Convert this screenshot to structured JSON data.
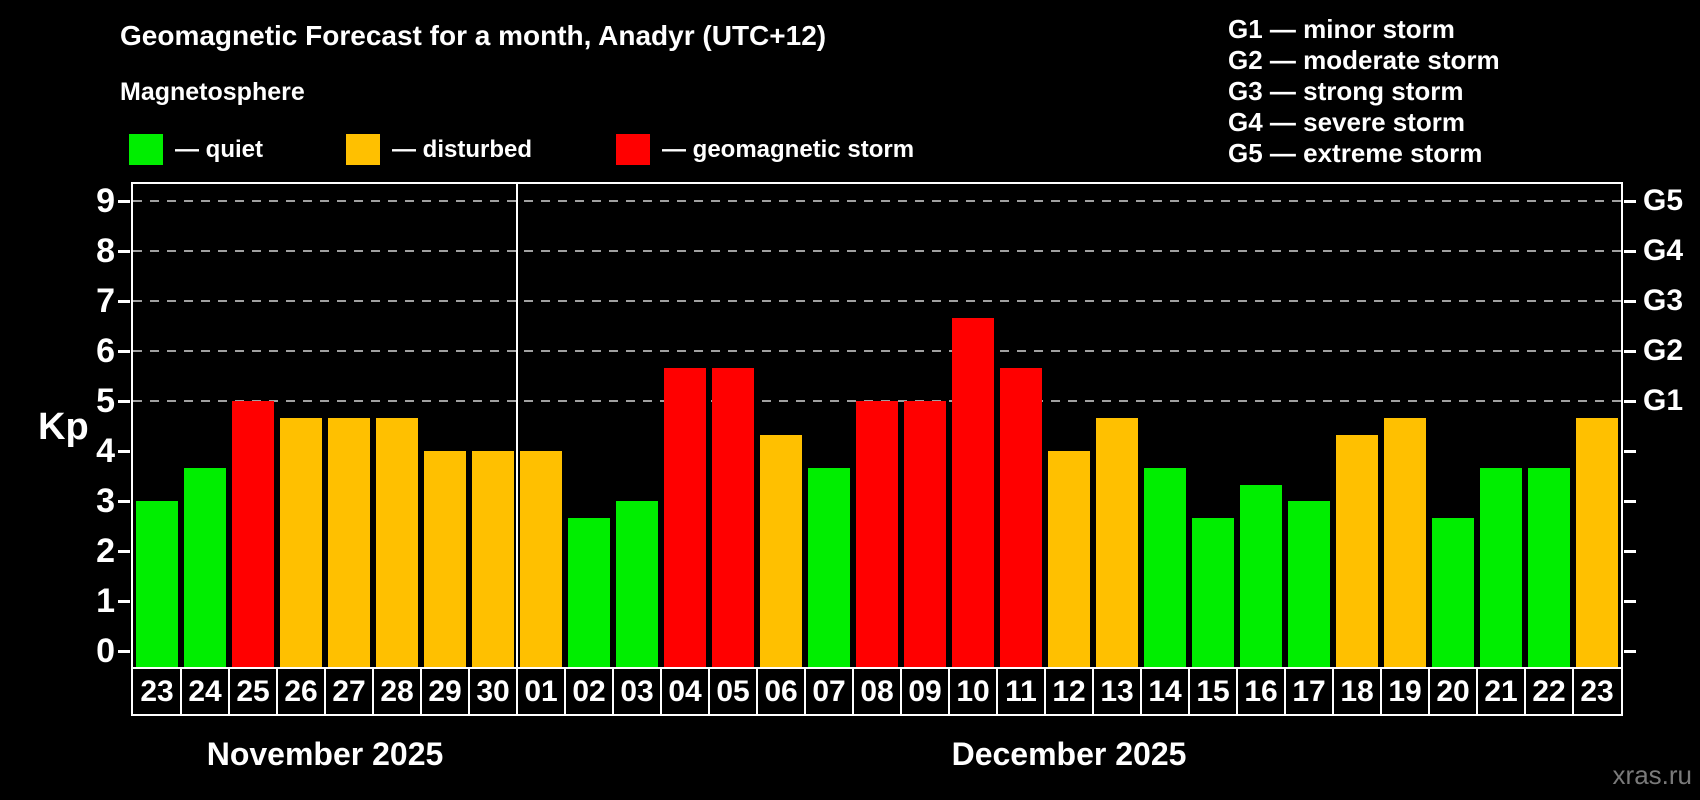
{
  "header": {
    "title": "Geomagnetic Forecast for a month, Anadyr (UTC+12)",
    "subtitle": "Magnetosphere"
  },
  "colors": {
    "quiet": "#00ee00",
    "disturbed": "#ffc000",
    "storm": "#ff0000",
    "grid": "#a0a0a0",
    "axis": "#ffffff",
    "watermark": "#7a7a7a"
  },
  "legend": {
    "items": [
      {
        "state": "quiet",
        "label": "— quiet"
      },
      {
        "state": "disturbed",
        "label": "— disturbed"
      },
      {
        "state": "storm",
        "label": "— geomagnetic storm"
      }
    ]
  },
  "g_legend": {
    "items": [
      "G1 — minor storm",
      "G2 — moderate storm",
      "G3 — strong storm",
      "G4 — severe storm",
      "G5 — extreme storm"
    ]
  },
  "axes": {
    "y_label": "Kp",
    "y_ticks": [
      0,
      1,
      2,
      3,
      4,
      5,
      6,
      7,
      8,
      9
    ],
    "right_labels": [
      {
        "kp": 5,
        "label": "G1"
      },
      {
        "kp": 6,
        "label": "G2"
      },
      {
        "kp": 7,
        "label": "G3"
      },
      {
        "kp": 8,
        "label": "G4"
      },
      {
        "kp": 9,
        "label": "G5"
      }
    ]
  },
  "chart_data": {
    "type": "bar",
    "title": "Geomagnetic Forecast for a month, Anadyr (UTC+12)",
    "xlabel": "",
    "ylabel": "Kp",
    "ylim": [
      0,
      9
    ],
    "grid": "horizontal dashed lines at Kp 5,6,7,8,9 (G1–G5 levels)",
    "legend_position": "top",
    "months": [
      {
        "label": "November 2025",
        "days": [
          {
            "day": "23",
            "kp": 3.0,
            "state": "quiet"
          },
          {
            "day": "24",
            "kp": 3.67,
            "state": "quiet"
          },
          {
            "day": "25",
            "kp": 5.0,
            "state": "storm"
          },
          {
            "day": "26",
            "kp": 4.67,
            "state": "disturbed"
          },
          {
            "day": "27",
            "kp": 4.67,
            "state": "disturbed"
          },
          {
            "day": "28",
            "kp": 4.67,
            "state": "disturbed"
          },
          {
            "day": "29",
            "kp": 4.0,
            "state": "disturbed"
          },
          {
            "day": "30",
            "kp": 4.0,
            "state": "disturbed"
          }
        ]
      },
      {
        "label": "December 2025",
        "days": [
          {
            "day": "01",
            "kp": 4.0,
            "state": "disturbed"
          },
          {
            "day": "02",
            "kp": 2.67,
            "state": "quiet"
          },
          {
            "day": "03",
            "kp": 3.0,
            "state": "quiet"
          },
          {
            "day": "04",
            "kp": 5.67,
            "state": "storm"
          },
          {
            "day": "05",
            "kp": 5.67,
            "state": "storm"
          },
          {
            "day": "06",
            "kp": 4.33,
            "state": "disturbed"
          },
          {
            "day": "07",
            "kp": 3.67,
            "state": "quiet"
          },
          {
            "day": "08",
            "kp": 5.0,
            "state": "storm"
          },
          {
            "day": "09",
            "kp": 5.0,
            "state": "storm"
          },
          {
            "day": "10",
            "kp": 6.67,
            "state": "storm"
          },
          {
            "day": "11",
            "kp": 5.67,
            "state": "storm"
          },
          {
            "day": "12",
            "kp": 4.0,
            "state": "disturbed"
          },
          {
            "day": "13",
            "kp": 4.67,
            "state": "disturbed"
          },
          {
            "day": "14",
            "kp": 3.67,
            "state": "quiet"
          },
          {
            "day": "15",
            "kp": 2.67,
            "state": "quiet"
          },
          {
            "day": "16",
            "kp": 3.33,
            "state": "quiet"
          },
          {
            "day": "17",
            "kp": 3.0,
            "state": "quiet"
          },
          {
            "day": "18",
            "kp": 4.33,
            "state": "disturbed"
          },
          {
            "day": "19",
            "kp": 4.67,
            "state": "disturbed"
          },
          {
            "day": "20",
            "kp": 2.67,
            "state": "quiet"
          },
          {
            "day": "21",
            "kp": 3.67,
            "state": "quiet"
          },
          {
            "day": "22",
            "kp": 3.67,
            "state": "quiet"
          },
          {
            "day": "23",
            "kp": 4.67,
            "state": "disturbed"
          }
        ]
      }
    ]
  },
  "watermark": "xras.ru"
}
